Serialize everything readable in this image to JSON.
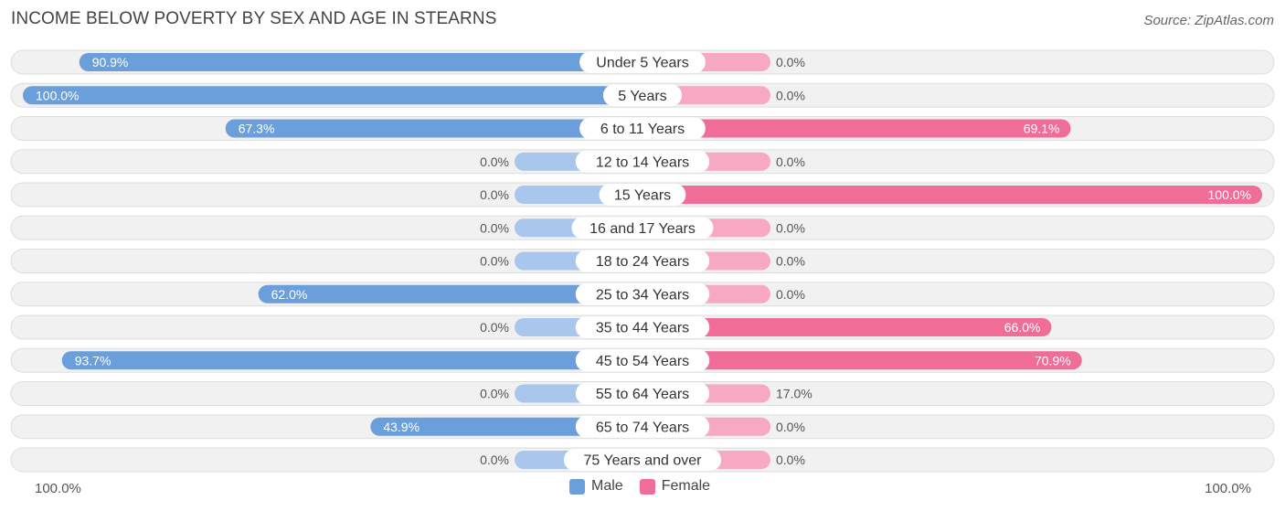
{
  "title": "INCOME BELOW POVERTY BY SEX AND AGE IN STEARNS",
  "source": "Source: ZipAtlas.com",
  "axis": {
    "left_label": "100.0%",
    "right_label": "100.0%"
  },
  "legend": {
    "male_label": "Male",
    "female_label": "Female"
  },
  "colors": {
    "male_strong": "#6a9fdc",
    "male_light": "#a9c7ec",
    "female_strong": "#f06d98",
    "female_light": "#f7a8c2",
    "track": "#f1f1f1",
    "track_border": "#dddddd"
  },
  "chart_data": {
    "type": "bar",
    "orientation": "diverging-horizontal",
    "title": "INCOME BELOW POVERTY BY SEX AND AGE IN STEARNS",
    "categories": [
      "Under 5 Years",
      "5 Years",
      "6 to 11 Years",
      "12 to 14 Years",
      "15 Years",
      "16 and 17 Years",
      "18 to 24 Years",
      "25 to 34 Years",
      "35 to 44 Years",
      "45 to 54 Years",
      "55 to 64 Years",
      "65 to 74 Years",
      "75 Years and over"
    ],
    "series": [
      {
        "name": "Male",
        "values": [
          90.9,
          100.0,
          67.3,
          0.0,
          0.0,
          0.0,
          0.0,
          62.0,
          0.0,
          93.7,
          0.0,
          43.9,
          0.0
        ],
        "labels": [
          "90.9%",
          "100.0%",
          "67.3%",
          "0.0%",
          "0.0%",
          "0.0%",
          "0.0%",
          "62.0%",
          "0.0%",
          "93.7%",
          "0.0%",
          "43.9%",
          "0.0%"
        ]
      },
      {
        "name": "Female",
        "values": [
          0.0,
          0.0,
          69.1,
          0.0,
          100.0,
          0.0,
          0.0,
          0.0,
          66.0,
          70.9,
          17.0,
          0.0,
          0.0
        ],
        "labels": [
          "0.0%",
          "0.0%",
          "69.1%",
          "0.0%",
          "100.0%",
          "0.0%",
          "0.0%",
          "0.0%",
          "66.0%",
          "70.9%",
          "17.0%",
          "0.0%",
          "0.0%"
        ]
      }
    ],
    "xlim": [
      0,
      100
    ],
    "legend_position": "bottom-center"
  }
}
